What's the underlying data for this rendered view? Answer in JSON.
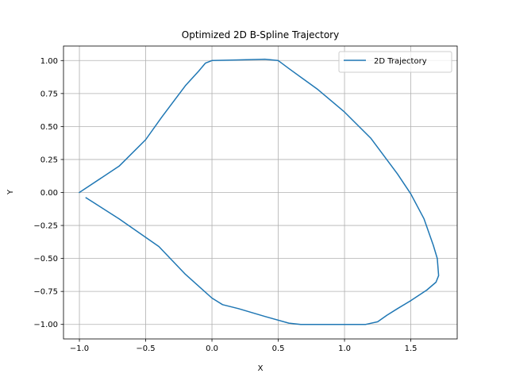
{
  "chart_data": {
    "type": "line",
    "title": "Optimized 2D B-Spline Trajectory",
    "xlabel": "X",
    "ylabel": "Y",
    "xlim": [
      -1.12,
      1.85
    ],
    "ylim": [
      -1.11,
      1.11
    ],
    "xticks": [
      -1.0,
      -0.5,
      0.0,
      0.5,
      1.0,
      1.5
    ],
    "xtick_labels": [
      "−1.0",
      "−0.5",
      "0.0",
      "0.5",
      "1.0",
      "1.5"
    ],
    "yticks": [
      1.0,
      0.75,
      0.5,
      0.25,
      0.0,
      -0.25,
      -0.5,
      -0.75,
      -1.0
    ],
    "ytick_labels": [
      "1.00",
      "0.75",
      "0.50",
      "0.25",
      "0.00",
      "−0.25",
      "−0.50",
      "−0.75",
      "−1.00"
    ],
    "grid": true,
    "legend_position": "top-right",
    "series": [
      {
        "name": "2D Trajectory",
        "color": "#1f77b4",
        "x": [
          -1.0,
          -0.7,
          -0.5,
          -0.38,
          -0.2,
          -0.1,
          -0.05,
          0.0,
          0.2,
          0.4,
          0.5,
          0.58,
          0.8,
          1.0,
          1.2,
          1.4,
          1.5,
          1.6,
          1.67,
          1.7,
          1.71,
          1.69,
          1.62,
          1.5,
          1.4,
          1.32,
          1.25,
          1.16,
          1.0,
          0.8,
          0.67,
          0.58,
          0.4,
          0.2,
          0.08,
          0.0,
          -0.2,
          -0.4,
          -0.7,
          -0.95
        ],
        "y": [
          0.0,
          0.2,
          0.4,
          0.57,
          0.81,
          0.92,
          0.98,
          1.0,
          1.005,
          1.01,
          1.0,
          0.94,
          0.78,
          0.61,
          0.41,
          0.14,
          -0.01,
          -0.2,
          -0.4,
          -0.5,
          -0.63,
          -0.68,
          -0.74,
          -0.82,
          -0.88,
          -0.93,
          -0.98,
          -1.0,
          -1.0,
          -1.0,
          -1.0,
          -0.99,
          -0.94,
          -0.88,
          -0.85,
          -0.8,
          -0.62,
          -0.41,
          -0.2,
          -0.04
        ]
      }
    ]
  }
}
